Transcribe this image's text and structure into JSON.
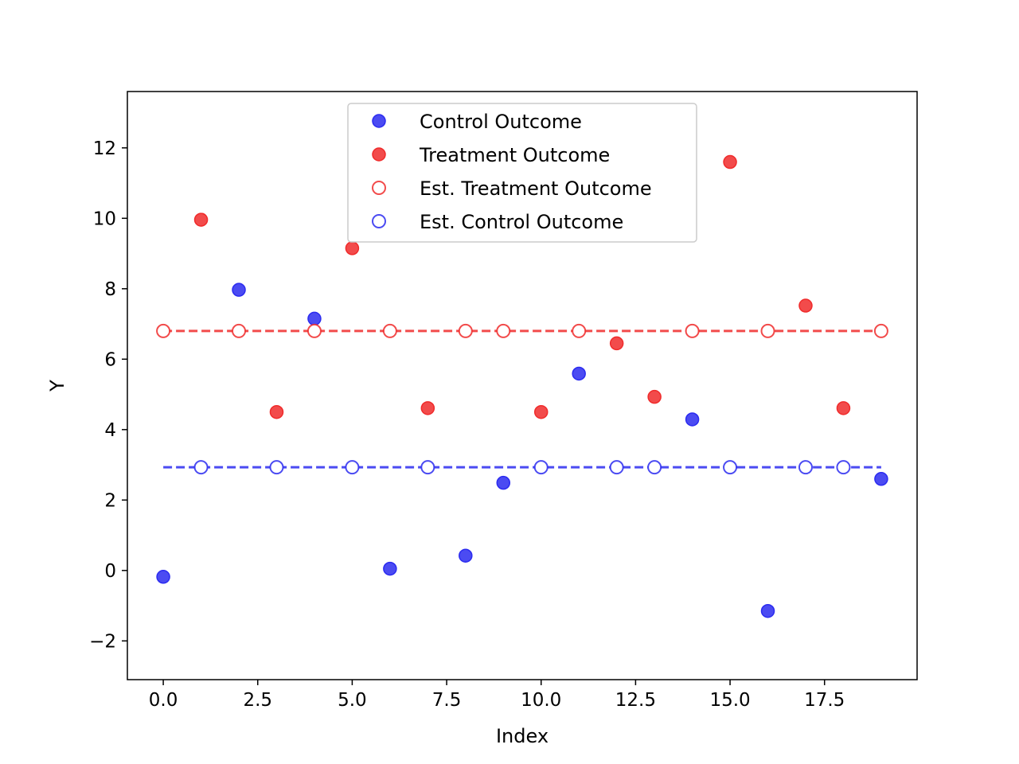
{
  "chart_data": {
    "type": "scatter",
    "title": "",
    "xlabel": "Index",
    "ylabel": "Y",
    "xlim": [
      -0.95,
      19.95
    ],
    "ylim": [
      -3.1,
      13.6
    ],
    "xticks": [
      0,
      2.5,
      5,
      7.5,
      10,
      12.5,
      15,
      17.5
    ],
    "xtick_labels": [
      "0.0",
      "2.5",
      "5.0",
      "7.5",
      "10.0",
      "12.5",
      "15.0",
      "17.5"
    ],
    "yticks": [
      -2,
      0,
      2,
      4,
      6,
      8,
      10,
      12
    ],
    "ytick_labels": [
      "−2",
      "0",
      "2",
      "4",
      "6",
      "8",
      "10",
      "12"
    ],
    "grid": false,
    "legend_position": "top-center",
    "colors": {
      "control": "#2b2bf0",
      "treatment": "#f02b2b"
    },
    "series": [
      {
        "name": "Control Outcome",
        "marker": "filled",
        "color": "#2b2bf0",
        "points": [
          [
            0,
            -0.18
          ],
          [
            2,
            7.97
          ],
          [
            4,
            7.15
          ],
          [
            6,
            0.05
          ],
          [
            8,
            0.42
          ],
          [
            9,
            2.49
          ],
          [
            11,
            5.59
          ],
          [
            14,
            4.29
          ],
          [
            16,
            -1.15
          ],
          [
            19,
            2.6
          ]
        ]
      },
      {
        "name": "Treatment Outcome",
        "marker": "filled",
        "color": "#f02b2b",
        "points": [
          [
            1,
            9.96
          ],
          [
            3,
            4.5
          ],
          [
            5,
            9.15
          ],
          [
            7,
            4.61
          ],
          [
            10,
            4.5
          ],
          [
            12,
            6.45
          ],
          [
            13,
            4.93
          ],
          [
            15,
            11.6
          ],
          [
            17,
            7.52
          ],
          [
            18,
            4.61
          ]
        ]
      },
      {
        "name": "Est. Treatment Outcome",
        "marker": "open",
        "color": "#f02b2b",
        "points": [
          [
            0,
            6.8
          ],
          [
            2,
            6.8
          ],
          [
            4,
            6.8
          ],
          [
            6,
            6.8
          ],
          [
            8,
            6.8
          ],
          [
            9,
            6.8
          ],
          [
            11,
            6.8
          ],
          [
            14,
            6.8
          ],
          [
            16,
            6.8
          ],
          [
            19,
            6.8
          ]
        ]
      },
      {
        "name": "Est. Control Outcome",
        "marker": "open",
        "color": "#2b2bf0",
        "points": [
          [
            1,
            2.93
          ],
          [
            3,
            2.93
          ],
          [
            5,
            2.93
          ],
          [
            7,
            2.93
          ],
          [
            10,
            2.93
          ],
          [
            12,
            2.93
          ],
          [
            13,
            2.93
          ],
          [
            15,
            2.93
          ],
          [
            17,
            2.93
          ],
          [
            18,
            2.93
          ]
        ]
      }
    ],
    "reference_lines": [
      {
        "series": "Est. Treatment Outcome",
        "y": 6.8,
        "x_from": 0,
        "x_to": 19,
        "style": "dashed",
        "color": "#f02b2b"
      },
      {
        "series": "Est. Control Outcome",
        "y": 2.93,
        "x_from": 0,
        "x_to": 19,
        "style": "dashed",
        "color": "#2b2bf0"
      }
    ]
  }
}
